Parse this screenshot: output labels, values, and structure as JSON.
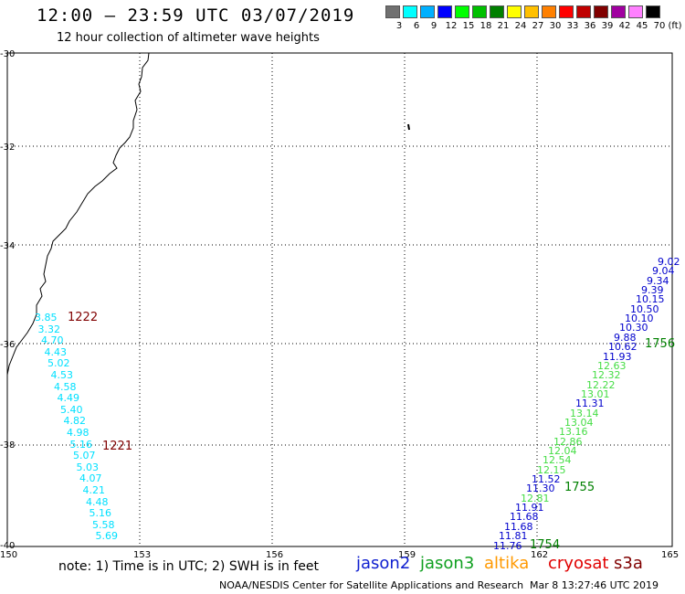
{
  "title": "12:00 – 23:59 UTC 03/07/2019",
  "subtitle": "12 hour collection of altimeter wave heights",
  "colorbar": {
    "unit": "(ft)",
    "labels": [
      "3",
      "6",
      "9",
      "12",
      "15",
      "18",
      "21",
      "24",
      "27",
      "30",
      "33",
      "36",
      "39",
      "42",
      "45",
      "70"
    ],
    "colors": [
      "#707070",
      "#00ffff",
      "#00b0ff",
      "#0000ff",
      "#00ff00",
      "#00c000",
      "#008000",
      "#ffff00",
      "#ffc000",
      "#ff8000",
      "#ff0000",
      "#c00000",
      "#800000",
      "#a000a0",
      "#ff80ff",
      "#000000"
    ]
  },
  "axes": {
    "lat_ticks": [
      "-30",
      "-32",
      "-34",
      "-36",
      "-38",
      "-40"
    ],
    "lon_ticks": [
      "150",
      "153",
      "156",
      "159",
      "162",
      "165"
    ]
  },
  "note": "note:  1) Time is in UTC;  2) SWH is in feet",
  "satellites": [
    {
      "name": "jason2",
      "color": "#1020d0"
    },
    {
      "name": "jason3",
      "color": "#10a020"
    },
    {
      "name": "altika",
      "color": "#ff9900"
    },
    {
      "name": "cryosat",
      "color": "#e00000"
    },
    {
      "name": "s3a",
      "color": "#800000"
    }
  ],
  "credit": "NOAA/NESDIS Center for Satellite Applications and Research",
  "timestamp": "Mar  8 13:27:46 UTC 2019",
  "track_west": {
    "color": "#00e0ff",
    "values": [
      "3.85",
      "3.32",
      "4.70",
      "4.43",
      "5.02",
      "4.53",
      "4.58",
      "4.49",
      "5.40",
      "4.82",
      "4.98",
      "5.16",
      "5.07",
      "5.03",
      "4.07",
      "4.21",
      "4.48",
      "5.16",
      "5.58",
      "5.69"
    ]
  },
  "time_labels_west": [
    {
      "text": "1222",
      "color": "#800000"
    },
    {
      "text": "1221",
      "color": "#800000"
    }
  ],
  "track_east_a": {
    "values": [
      {
        "v": "9.02",
        "c": "#0000cc"
      },
      {
        "v": "9.04",
        "c": "#0000cc"
      },
      {
        "v": "9.34",
        "c": "#0000cc"
      },
      {
        "v": "9.39",
        "c": "#0000cc"
      },
      {
        "v": "10.15",
        "c": "#0000cc"
      },
      {
        "v": "10.50",
        "c": "#0000cc"
      },
      {
        "v": "10.10",
        "c": "#0000cc"
      },
      {
        "v": "10.30",
        "c": "#0000cc"
      },
      {
        "v": "9.88",
        "c": "#0000cc"
      },
      {
        "v": "10.62",
        "c": "#0000cc"
      },
      {
        "v": "11.93",
        "c": "#0000cc"
      },
      {
        "v": "12.63",
        "c": "#44dd44"
      },
      {
        "v": "12.32",
        "c": "#44dd44"
      },
      {
        "v": "12.22",
        "c": "#44dd44"
      },
      {
        "v": "13.01",
        "c": "#44dd44"
      },
      {
        "v": "11.31",
        "c": "#0000cc"
      },
      {
        "v": "13.14",
        "c": "#44dd44"
      },
      {
        "v": "13.04",
        "c": "#44dd44"
      },
      {
        "v": "13.16",
        "c": "#44dd44"
      },
      {
        "v": "12.86",
        "c": "#44dd44"
      },
      {
        "v": "12.04",
        "c": "#44dd44"
      },
      {
        "v": "12.54",
        "c": "#44dd44"
      },
      {
        "v": "12.15",
        "c": "#44dd44"
      },
      {
        "v": "11.52",
        "c": "#0000cc"
      },
      {
        "v": "11.30",
        "c": "#0000cc"
      },
      {
        "v": "12.81",
        "c": "#44dd44"
      },
      {
        "v": "11.91",
        "c": "#0000cc"
      },
      {
        "v": "11.68",
        "c": "#0000cc"
      },
      {
        "v": "11.68",
        "c": "#0000cc"
      },
      {
        "v": "11.81",
        "c": "#0000cc"
      },
      {
        "v": "11.76",
        "c": "#0000cc"
      }
    ]
  },
  "time_labels_east": [
    {
      "text": "1756",
      "color": "#008000"
    },
    {
      "text": "1755",
      "color": "#008000"
    },
    {
      "text": "1754",
      "color": "#008000"
    }
  ]
}
